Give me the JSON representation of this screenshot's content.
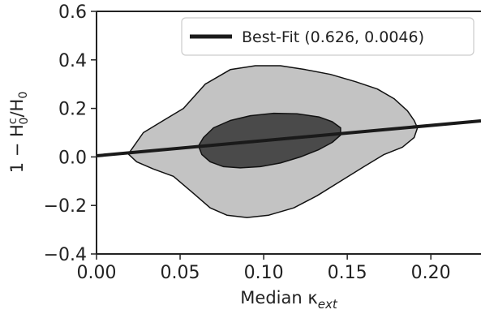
{
  "chart_data": {
    "type": "line",
    "title": "",
    "xlabel": {
      "base": "Median κ",
      "subscript": "ext"
    },
    "ylabel": {
      "prefix": "1 − H",
      "sub": "0",
      "sup": "c",
      "suffix": "/H",
      "sub2": "0"
    },
    "xlim": [
      0.0,
      0.23
    ],
    "ylim": [
      -0.4,
      0.6
    ],
    "xticks": [
      0.0,
      0.05,
      0.1,
      0.15,
      0.2
    ],
    "xtick_labels": [
      "0.00",
      "0.05",
      "0.10",
      "0.15",
      "0.20"
    ],
    "yticks": [
      -0.4,
      -0.2,
      0.0,
      0.2,
      0.4,
      0.6
    ],
    "ytick_labels": [
      "−0.4",
      "−0.2",
      "0.0",
      "0.2",
      "0.4",
      "0.6"
    ],
    "grid": false,
    "legend_position": "top-right",
    "series": [
      {
        "name": "Best-Fit (0.626, 0.0046)",
        "kind": "line",
        "color": "#1a1a1a",
        "slope": 0.626,
        "intercept": 0.0046,
        "x": [
          0.0,
          0.23
        ],
        "y": [
          0.0046,
          0.1486
        ]
      }
    ],
    "regions": [
      {
        "label": "outer-contour",
        "color": "#c3c3c3",
        "x": [
          0.019,
          0.028,
          0.04,
          0.052,
          0.065,
          0.08,
          0.095,
          0.11,
          0.125,
          0.14,
          0.155,
          0.168,
          0.178,
          0.186,
          0.19,
          0.192,
          0.19,
          0.183,
          0.172,
          0.16,
          0.146,
          0.132,
          0.118,
          0.103,
          0.09,
          0.078,
          0.068,
          0.058,
          0.046,
          0.034,
          0.024,
          0.019
        ],
        "y": [
          0.012,
          0.1,
          0.15,
          0.2,
          0.3,
          0.36,
          0.376,
          0.376,
          0.36,
          0.34,
          0.31,
          0.28,
          0.24,
          0.19,
          0.15,
          0.12,
          0.08,
          0.04,
          0.01,
          -0.04,
          -0.1,
          -0.16,
          -0.21,
          -0.24,
          -0.25,
          -0.24,
          -0.21,
          -0.15,
          -0.08,
          -0.05,
          -0.02,
          0.012
        ]
      },
      {
        "label": "inner-contour",
        "color": "#4a4a4a",
        "x": [
          0.061,
          0.064,
          0.07,
          0.08,
          0.092,
          0.106,
          0.12,
          0.133,
          0.141,
          0.146,
          0.146,
          0.141,
          0.133,
          0.122,
          0.11,
          0.098,
          0.086,
          0.076,
          0.068,
          0.063,
          0.061
        ],
        "y": [
          0.045,
          0.08,
          0.12,
          0.15,
          0.17,
          0.18,
          0.178,
          0.165,
          0.145,
          0.12,
          0.09,
          0.06,
          0.03,
          0.0,
          -0.025,
          -0.04,
          -0.045,
          -0.04,
          -0.02,
          0.01,
          0.045
        ]
      }
    ]
  }
}
